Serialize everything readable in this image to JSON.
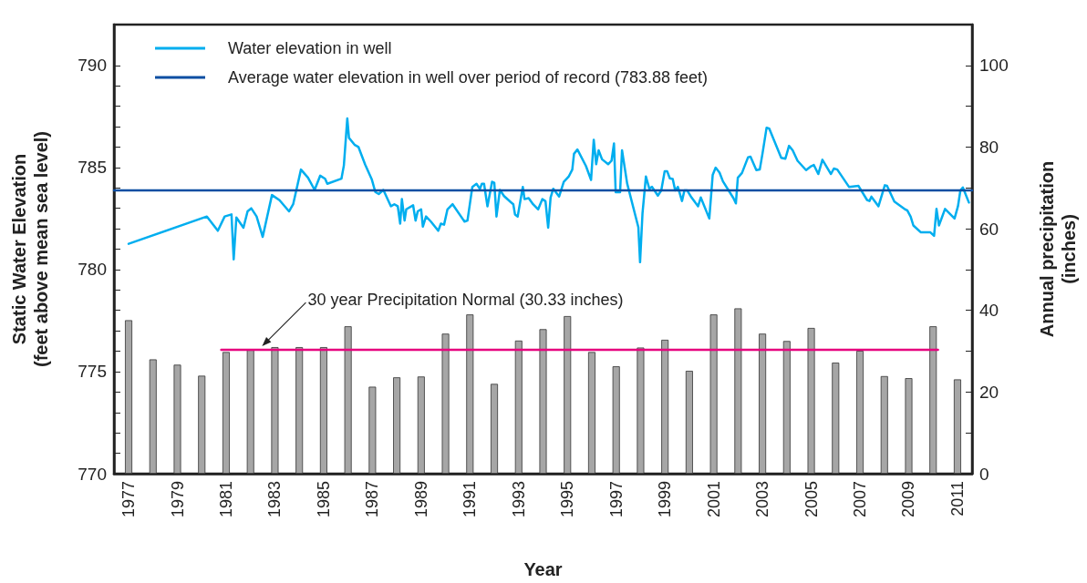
{
  "chart_data": {
    "type": "line",
    "xlabel": "Year",
    "ylabel": "Static Water Elevation (feet above mean sea level)",
    "y2label": "Annual precipitation (inches)",
    "annotations": [
      "30 year Precipitation Normal (30.33 inches)"
    ],
    "xlim": [
      1976.4,
      2011.6
    ],
    "xticks": [
      1977,
      1979,
      1981,
      1983,
      1985,
      1987,
      1989,
      1991,
      1993,
      1995,
      1997,
      1999,
      2001,
      2003,
      2005,
      2007,
      2009,
      2011
    ],
    "ylim": [
      770,
      792
    ],
    "yticks": [
      770,
      {
        "value": 771,
        "label": null
      },
      {
        "value": 772,
        "label": null
      },
      {
        "value": 773,
        "label": null
      },
      {
        "value": 774,
        "label": null
      },
      775,
      {
        "value": 776,
        "label": null
      },
      {
        "value": 777,
        "label": null
      },
      {
        "value": 778,
        "label": null
      },
      {
        "value": 779,
        "label": null
      },
      780,
      {
        "value": 781,
        "label": null
      },
      {
        "value": 782,
        "label": null
      },
      {
        "value": 783,
        "label": null
      },
      {
        "value": 784,
        "label": null
      },
      785,
      {
        "value": 786,
        "label": null
      },
      {
        "value": 787,
        "label": null
      },
      {
        "value": 788,
        "label": null
      },
      {
        "value": 789,
        "label": null
      },
      790
    ],
    "y2lim": [
      0,
      110
    ],
    "y2ticks": [
      0,
      {
        "value": 10,
        "label": null
      },
      20,
      {
        "value": 30,
        "label": null
      },
      40,
      {
        "value": 50,
        "label": null
      },
      60,
      {
        "value": 70,
        "label": null
      },
      80,
      {
        "value": 90,
        "label": null
      },
      100
    ],
    "grid": false,
    "legend": "top left",
    "marker": "none",
    "series": [
      {
        "name": "Water elevation in well",
        "color": "#00aeef",
        "x": [
          1977.0,
          1980.21,
          1980.66,
          1980.94,
          1981.22,
          1981.31,
          1981.42,
          1981.71,
          1981.88,
          1982.03,
          1982.25,
          1982.5,
          1982.88,
          1983.19,
          1983.58,
          1983.75,
          1984.07,
          1984.36,
          1984.63,
          1984.86,
          1985.06,
          1985.15,
          1985.73,
          1985.83,
          1985.97,
          1986.04,
          1986.28,
          1986.43,
          1986.7,
          1986.98,
          1987.12,
          1987.26,
          1987.45,
          1987.76,
          1987.9,
          1988.04,
          1988.14,
          1988.21,
          1988.32,
          1988.39,
          1988.67,
          1988.77,
          1988.86,
          1989.0,
          1989.07,
          1989.2,
          1989.4,
          1989.7,
          1989.81,
          1989.94,
          1990.08,
          1990.29,
          1990.78,
          1990.9,
          1991.1,
          1991.27,
          1991.41,
          1991.49,
          1991.58,
          1991.72,
          1991.91,
          1992.0,
          1992.09,
          1992.23,
          1992.4,
          1992.68,
          1992.78,
          1992.85,
          1992.96,
          1993.17,
          1993.24,
          1993.41,
          1993.59,
          1993.8,
          1993.97,
          1994.1,
          1994.21,
          1994.31,
          1994.42,
          1994.66,
          1994.85,
          1995.05,
          1995.2,
          1995.27,
          1995.41,
          1995.76,
          1995.97,
          1996.08,
          1996.18,
          1996.28,
          1996.42,
          1996.67,
          1996.81,
          1996.91,
          1996.98,
          1997.16,
          1997.24,
          1997.45,
          1997.91,
          1997.98,
          1998.08,
          1998.22,
          1998.36,
          1998.47,
          1998.71,
          1998.85,
          1998.99,
          1999.09,
          1999.2,
          1999.32,
          1999.42,
          1999.53,
          1999.7,
          1999.8,
          1999.91,
          2000.09,
          2000.36,
          2000.47,
          2000.82,
          2000.96,
          2001.08,
          2001.24,
          2001.38,
          2001.81,
          2001.91,
          2001.99,
          2002.16,
          2002.41,
          2002.51,
          2002.75,
          2002.89,
          2003.0,
          2003.17,
          2003.28,
          2003.77,
          2003.94,
          2004.09,
          2004.24,
          2004.44,
          2004.79,
          2004.97,
          2005.11,
          2005.29,
          2005.46,
          2005.81,
          2005.93,
          2006.07,
          2006.55,
          2006.94,
          2007.29,
          2007.39,
          2007.47,
          2007.76,
          2008.02,
          2008.11,
          2008.41,
          2008.86,
          2008.94,
          2009.08,
          2009.19,
          2009.5,
          2009.89,
          2010.04,
          2010.14,
          2010.24,
          2010.49,
          2010.88,
          2011.02,
          2011.12,
          2011.22,
          2011.47
        ],
        "values": [
          781.26,
          782.6,
          781.9,
          782.6,
          782.7,
          780.5,
          782.55,
          782.05,
          782.85,
          783.0,
          782.6,
          781.6,
          783.65,
          783.4,
          782.85,
          783.2,
          784.9,
          784.5,
          783.9,
          784.6,
          784.45,
          784.2,
          784.45,
          785.1,
          787.4,
          786.45,
          786.1,
          786.0,
          785.15,
          784.4,
          783.8,
          783.7,
          783.9,
          783.1,
          783.2,
          783.1,
          782.25,
          783.45,
          782.4,
          782.95,
          783.15,
          782.4,
          782.85,
          782.95,
          782.1,
          782.6,
          782.35,
          781.9,
          782.25,
          782.2,
          782.95,
          783.2,
          782.35,
          782.4,
          784.05,
          784.2,
          783.95,
          784.2,
          784.2,
          783.1,
          784.3,
          784.25,
          782.6,
          783.9,
          783.6,
          783.3,
          783.2,
          782.7,
          782.6,
          784.05,
          783.45,
          783.5,
          783.2,
          782.95,
          783.45,
          783.35,
          782.05,
          783.53,
          783.96,
          783.58,
          784.3,
          784.55,
          784.9,
          785.67,
          785.88,
          785.07,
          784.39,
          786.36,
          785.16,
          785.84,
          785.4,
          785.16,
          785.33,
          786.18,
          783.79,
          783.79,
          785.84,
          784.22,
          782.07,
          780.36,
          782.76,
          784.56,
          783.96,
          784.05,
          783.62,
          783.88,
          784.82,
          784.82,
          784.47,
          784.44,
          783.88,
          784.05,
          783.36,
          783.88,
          783.88,
          783.53,
          783.1,
          783.53,
          782.5,
          784.64,
          784.99,
          784.75,
          784.32,
          783.5,
          783.24,
          784.5,
          784.73,
          785.5,
          785.53,
          784.87,
          784.9,
          785.67,
          786.95,
          786.9,
          785.47,
          785.43,
          786.06,
          785.84,
          785.33,
          784.87,
          785.04,
          785.12,
          784.68,
          785.38,
          784.68,
          784.95,
          784.9,
          784.05,
          784.1,
          783.41,
          783.36,
          783.57,
          783.1,
          784.13,
          784.1,
          783.33,
          782.94,
          782.9,
          782.59,
          782.16,
          781.82,
          781.82,
          781.65,
          782.97,
          782.16,
          782.97,
          782.5,
          783.1,
          783.88,
          784.02,
          783.28
        ]
      },
      {
        "name": "Average water elevation in well over period of record (783.88 feet)",
        "color": "#0b4ea2",
        "x": [
          1976.4,
          2011.6
        ],
        "values": [
          783.88,
          783.88
        ]
      },
      {
        "type": "bar",
        "axis": "y2",
        "color": "#a6a6a6",
        "x": [
          1977,
          1978,
          1979,
          1980,
          1981,
          1982,
          1983,
          1984,
          1985,
          1986,
          1987,
          1988,
          1989,
          1990,
          1991,
          1992,
          1993,
          1994,
          1995,
          1996,
          1997,
          1998,
          1999,
          2000,
          2001,
          2002,
          2003,
          2004,
          2005,
          2006,
          2007,
          2008,
          2009,
          2010,
          2011
        ],
        "values": [
          37.6,
          28.0,
          26.7,
          24.0,
          29.8,
          30.3,
          31.0,
          31.0,
          31.0,
          36.1,
          21.3,
          23.6,
          23.8,
          34.3,
          39.0,
          22.0,
          32.6,
          35.4,
          38.6,
          29.8,
          26.3,
          30.9,
          32.8,
          25.2,
          39.0,
          40.5,
          34.3,
          32.5,
          35.7,
          27.2,
          30.1,
          23.9,
          23.4,
          36.1,
          23.1
        ]
      },
      {
        "axis": "y2",
        "color": "#e6007e",
        "x": [
          1980.8,
          2010.2
        ],
        "values": [
          30.33,
          30.33
        ]
      }
    ]
  }
}
